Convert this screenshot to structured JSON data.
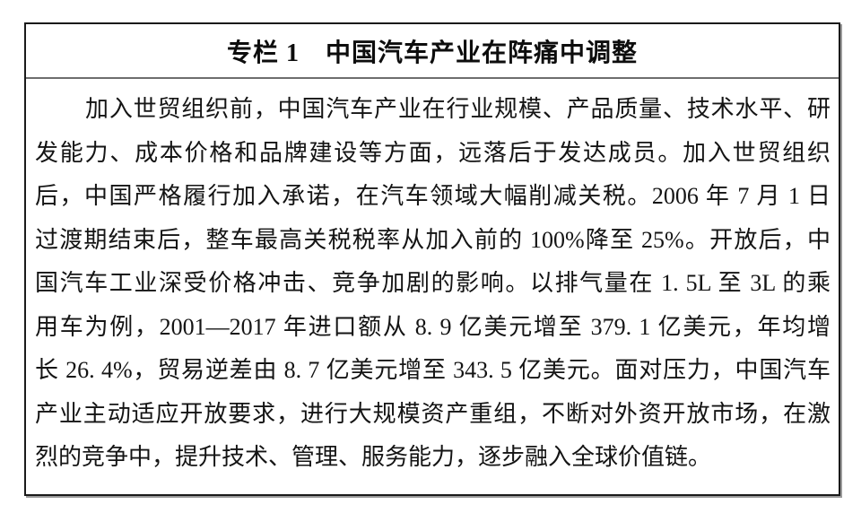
{
  "document": {
    "title": "专栏 1　中国汽车产业在阵痛中调整",
    "body_lines": [
      "加入世贸组织前，中国汽车产业在行业规模、产品质量、技术水平、研",
      "发能力、成本价格和品牌建设等方面，远落后于发达成员。加入世贸组织",
      "后，中国严格履行加入承诺，在汽车领域大幅削减关税。2006 年 7 月 1 日",
      "过渡期结束后，整车最高关税税率从加入前的 100%降至 25%。开放后，中",
      "国汽车工业深受价格冲击、竞争加剧的影响。以排气量在 1. 5L 至 3L 的乘",
      "用车为例，2001—2017 年进口额从 8. 9 亿美元增至 379. 1 亿美元，年均增",
      "长 26. 4%，贸易逆差由 8. 7 亿美元增至 343. 5 亿美元。面对压力，中国汽车",
      "产业主动适应开放要求，进行大规模资产重组，不断对外资开放市场，在激",
      "烈的竞争中，提升技术、管理、服务能力，逐步融入全球价值链。"
    ],
    "colors": {
      "background": "#ffffff",
      "border": "#1a1a1a",
      "divider": "#6e6e6e",
      "text": "#141414"
    }
  }
}
